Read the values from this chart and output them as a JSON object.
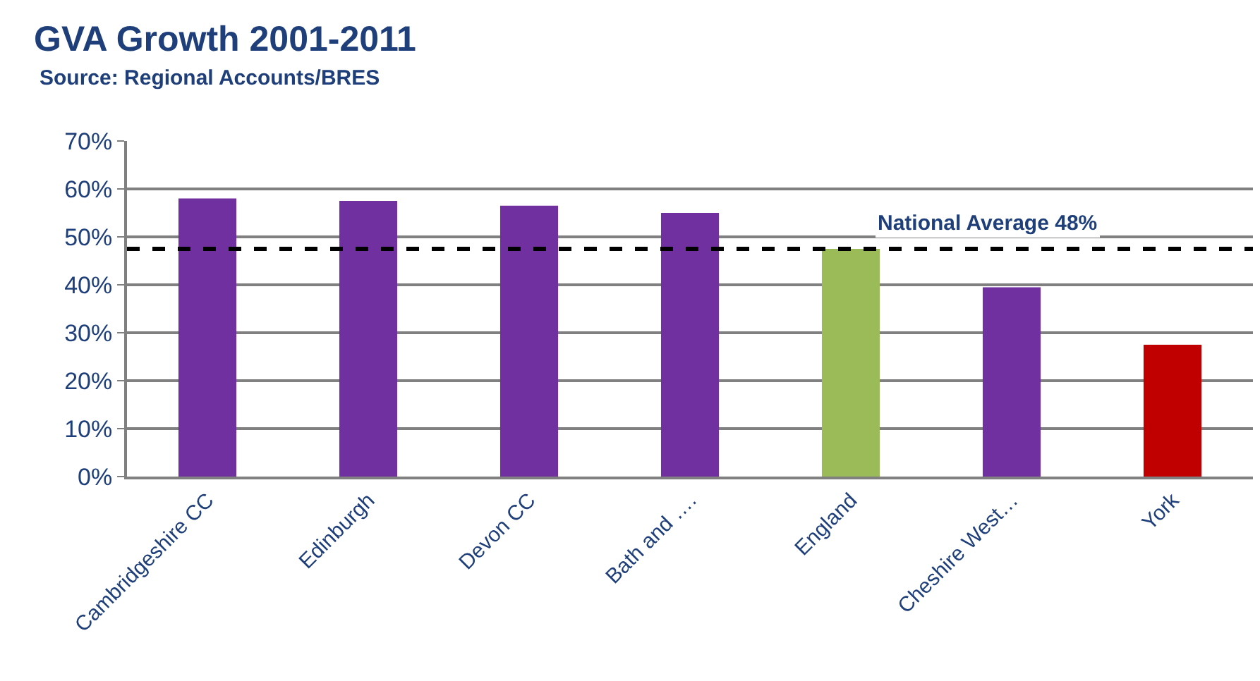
{
  "chart_data": {
    "type": "bar",
    "title": "GVA Growth 2001-2011",
    "subtitle": "Source: Regional Accounts/BRES",
    "categories": [
      "Cambridgeshire CC",
      "Edinburgh",
      "Devon CC",
      "Bath and ….",
      "England",
      "Cheshire West…",
      "York"
    ],
    "values": [
      58,
      57.5,
      56.5,
      55,
      47.5,
      39.5,
      27.5
    ],
    "colors": [
      "#7030a0",
      "#7030a0",
      "#7030a0",
      "#7030a0",
      "#9bbb59",
      "#7030a0",
      "#c00000"
    ],
    "ylim": [
      0,
      70
    ],
    "yticks": [
      {
        "value": 0,
        "label": "0%"
      },
      {
        "value": 10,
        "label": "10%"
      },
      {
        "value": 20,
        "label": "20%"
      },
      {
        "value": 30,
        "label": "30%"
      },
      {
        "value": 40,
        "label": "40%"
      },
      {
        "value": 50,
        "label": "50%"
      },
      {
        "value": 60,
        "label": "60%"
      },
      {
        "value": 70,
        "label": "70%"
      }
    ],
    "ref_lines": [
      {
        "axis": "y",
        "value": 47.5,
        "label": "National Average 48%",
        "color": "#000000",
        "line_style": "dashed"
      }
    ],
    "grid": "y",
    "legend": false
  }
}
